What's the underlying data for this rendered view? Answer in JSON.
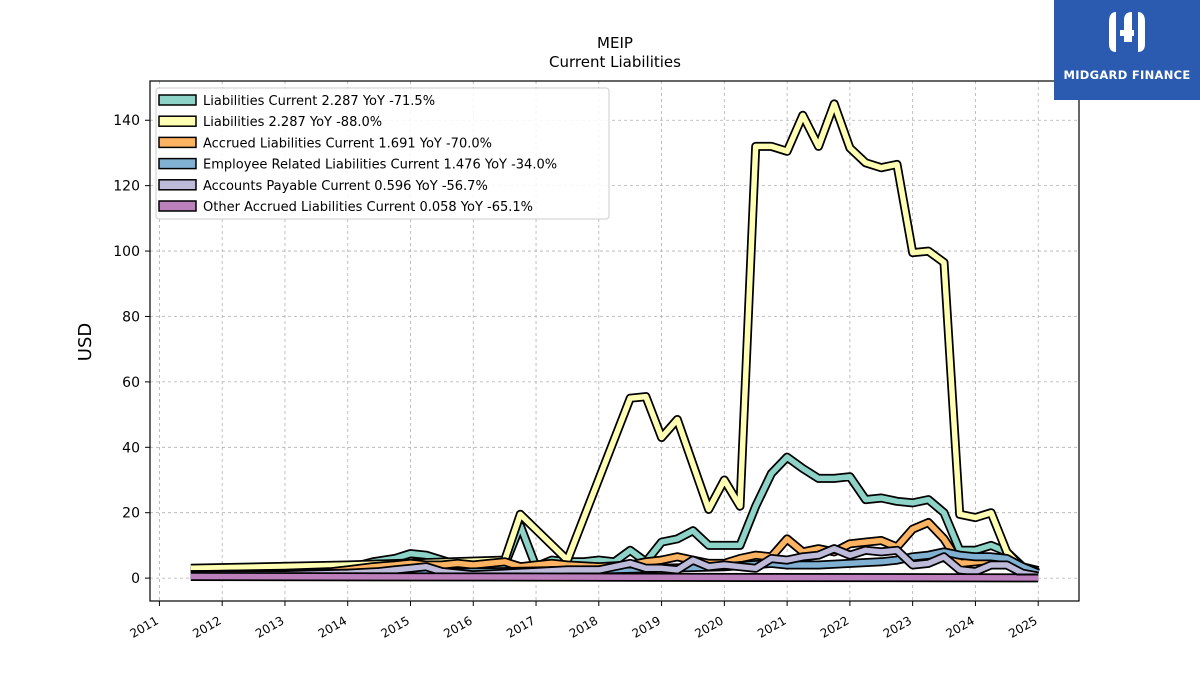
{
  "brand": {
    "name": "MIDGARD FINANCE",
    "color": "#2a5bb0"
  },
  "chart_data": {
    "type": "line",
    "title": "MEIP",
    "subtitle": "Current  Liabilities",
    "ylabel": "USD",
    "xlabel": "",
    "ylim": [
      -7,
      152
    ],
    "xlim": [
      2010.85,
      2025.65
    ],
    "yticks": [
      0,
      20,
      40,
      60,
      80,
      100,
      120,
      140
    ],
    "xticks": [
      "2011",
      "2012",
      "2013",
      "2014",
      "2015",
      "2016",
      "2017",
      "2018",
      "2019",
      "2020",
      "2021",
      "2022",
      "2023",
      "2024",
      "2025"
    ],
    "grid": true,
    "legend_position": "upper left",
    "series": [
      {
        "name": "Liabilities Current  2.287 YoY -71.5%",
        "color": "#8dd3c7",
        "x": [
          2011.5,
          2013.0,
          2014.0,
          2014.4,
          2014.75,
          2015.0,
          2015.25,
          2015.5,
          2015.75,
          2016.0,
          2016.25,
          2016.5,
          2016.75,
          2017.0,
          2017.25,
          2017.5,
          2017.75,
          2018.0,
          2018.25,
          2018.5,
          2018.75,
          2019.0,
          2019.25,
          2019.5,
          2019.75,
          2020.0,
          2020.25,
          2020.5,
          2020.75,
          2021.0,
          2021.25,
          2021.5,
          2021.75,
          2022.0,
          2022.25,
          2022.5,
          2022.75,
          2023.0,
          2023.25,
          2023.5,
          2023.75,
          2024.0,
          2024.25,
          2024.5,
          2024.75,
          2025.0
        ],
        "y": [
          2.0,
          2.5,
          3.0,
          5.0,
          6.0,
          7.5,
          7.0,
          5.5,
          4.0,
          4.0,
          4.0,
          4.0,
          16.0,
          3.5,
          5.5,
          5.0,
          5.0,
          5.5,
          5.0,
          8.5,
          5.0,
          11.0,
          12.0,
          14.5,
          10.0,
          10.0,
          10.0,
          22.0,
          32.0,
          37.0,
          33.5,
          30.5,
          30.5,
          31.0,
          24.0,
          24.5,
          23.5,
          23.0,
          24.0,
          20.0,
          8.5,
          8.5,
          10.0,
          8.0,
          3.5,
          2.3
        ]
      },
      {
        "name": "Liabilities  2.287 YoY -88.0%",
        "color": "#ffffb3",
        "x": [
          2011.5,
          2014.0,
          2016.5,
          2016.75,
          2017.5,
          2018.5,
          2018.75,
          2019.0,
          2019.25,
          2019.75,
          2020.0,
          2020.25,
          2020.5,
          2020.75,
          2021.0,
          2021.25,
          2021.5,
          2021.75,
          2022.0,
          2022.25,
          2022.5,
          2022.75,
          2023.0,
          2023.25,
          2023.5,
          2023.75,
          2024.0,
          2024.25,
          2024.5,
          2024.75,
          2025.0
        ],
        "y": [
          3.0,
          4.0,
          5.5,
          19.5,
          5.5,
          55.0,
          55.5,
          43.0,
          48.5,
          21.0,
          30.0,
          22.0,
          132.0,
          132.0,
          130.5,
          141.5,
          132.0,
          145.0,
          131.5,
          127.0,
          125.5,
          126.5,
          99.5,
          100.0,
          96.5,
          19.5,
          18.5,
          20.0,
          8.0,
          3.0,
          2.3
        ]
      },
      {
        "name": "Accrued Liabilities Current  1.691 YoY -70.0%",
        "color": "#fdb462",
        "x": [
          2011.5,
          2013.0,
          2013.75,
          2014.0,
          2014.4,
          2014.75,
          2015.0,
          2015.25,
          2015.5,
          2015.75,
          2016.0,
          2016.25,
          2016.5,
          2016.75,
          2017.0,
          2017.25,
          2017.5,
          2018.0,
          2018.5,
          2018.75,
          2019.0,
          2019.25,
          2019.5,
          2019.75,
          2020.0,
          2020.25,
          2020.5,
          2020.75,
          2021.0,
          2021.25,
          2021.5,
          2021.75,
          2022.0,
          2022.25,
          2022.5,
          2022.75,
          2023.0,
          2023.25,
          2023.5,
          2023.75,
          2024.0,
          2024.25,
          2024.5,
          2024.75,
          2025.0
        ],
        "y": [
          1.0,
          1.5,
          2.0,
          2.5,
          3.5,
          4.0,
          4.5,
          4.0,
          4.0,
          4.5,
          4.0,
          4.5,
          5.0,
          3.5,
          4.0,
          4.5,
          4.0,
          3.5,
          4.0,
          5.0,
          5.5,
          6.5,
          5.5,
          4.5,
          4.5,
          6.0,
          7.0,
          6.5,
          12.0,
          8.0,
          9.0,
          8.0,
          10.5,
          11.0,
          11.5,
          9.5,
          15.0,
          17.0,
          12.0,
          4.5,
          5.0,
          5.5,
          5.5,
          3.0,
          1.7
        ]
      },
      {
        "name": "Employee Related Liabilities Current  1.476 YoY -34.0%",
        "color": "#80b1d3",
        "x": [
          2011.5,
          2014.0,
          2016.5,
          2018.0,
          2019.0,
          2020.0,
          2020.75,
          2021.0,
          2021.5,
          2022.0,
          2022.5,
          2022.75,
          2023.0,
          2023.25,
          2023.5,
          2023.75,
          2024.0,
          2024.25,
          2024.5,
          2024.75,
          2025.0
        ],
        "y": [
          1.0,
          1.5,
          2.0,
          2.5,
          3.0,
          3.5,
          4.5,
          4.0,
          4.0,
          4.5,
          5.0,
          5.5,
          6.5,
          7.0,
          8.0,
          7.0,
          6.5,
          6.5,
          6.0,
          3.5,
          1.5
        ]
      },
      {
        "name": "Accounts Payable Current  0.596 YoY -56.7%",
        "color": "#bebada",
        "x": [
          2011.5,
          2013.0,
          2014.0,
          2014.5,
          2014.75,
          2015.0,
          2015.25,
          2015.5,
          2016.0,
          2016.5,
          2017.0,
          2017.5,
          2018.0,
          2018.5,
          2018.75,
          2019.0,
          2019.25,
          2019.5,
          2019.75,
          2020.0,
          2020.25,
          2020.5,
          2020.75,
          2021.0,
          2021.25,
          2021.5,
          2021.75,
          2022.0,
          2022.25,
          2022.5,
          2022.75,
          2023.0,
          2023.25,
          2023.5,
          2023.75,
          2024.0,
          2024.25,
          2024.5,
          2024.75,
          2025.0
        ],
        "y": [
          1.0,
          1.0,
          1.5,
          2.0,
          2.5,
          3.0,
          3.5,
          2.0,
          1.0,
          1.5,
          2.0,
          2.5,
          2.5,
          4.5,
          3.0,
          3.0,
          2.5,
          5.5,
          3.5,
          4.0,
          3.5,
          3.0,
          6.0,
          5.5,
          6.5,
          7.0,
          9.0,
          7.0,
          8.5,
          8.0,
          8.5,
          4.0,
          4.5,
          6.5,
          2.5,
          2.0,
          4.0,
          4.0,
          1.5,
          0.6
        ]
      },
      {
        "name": "Other Accrued Liabilities Current  0.058 YoY -65.1%",
        "color": "#bc80bd",
        "x": [
          2011.5,
          2025.0
        ],
        "y": [
          0.5,
          0.06
        ]
      }
    ]
  }
}
